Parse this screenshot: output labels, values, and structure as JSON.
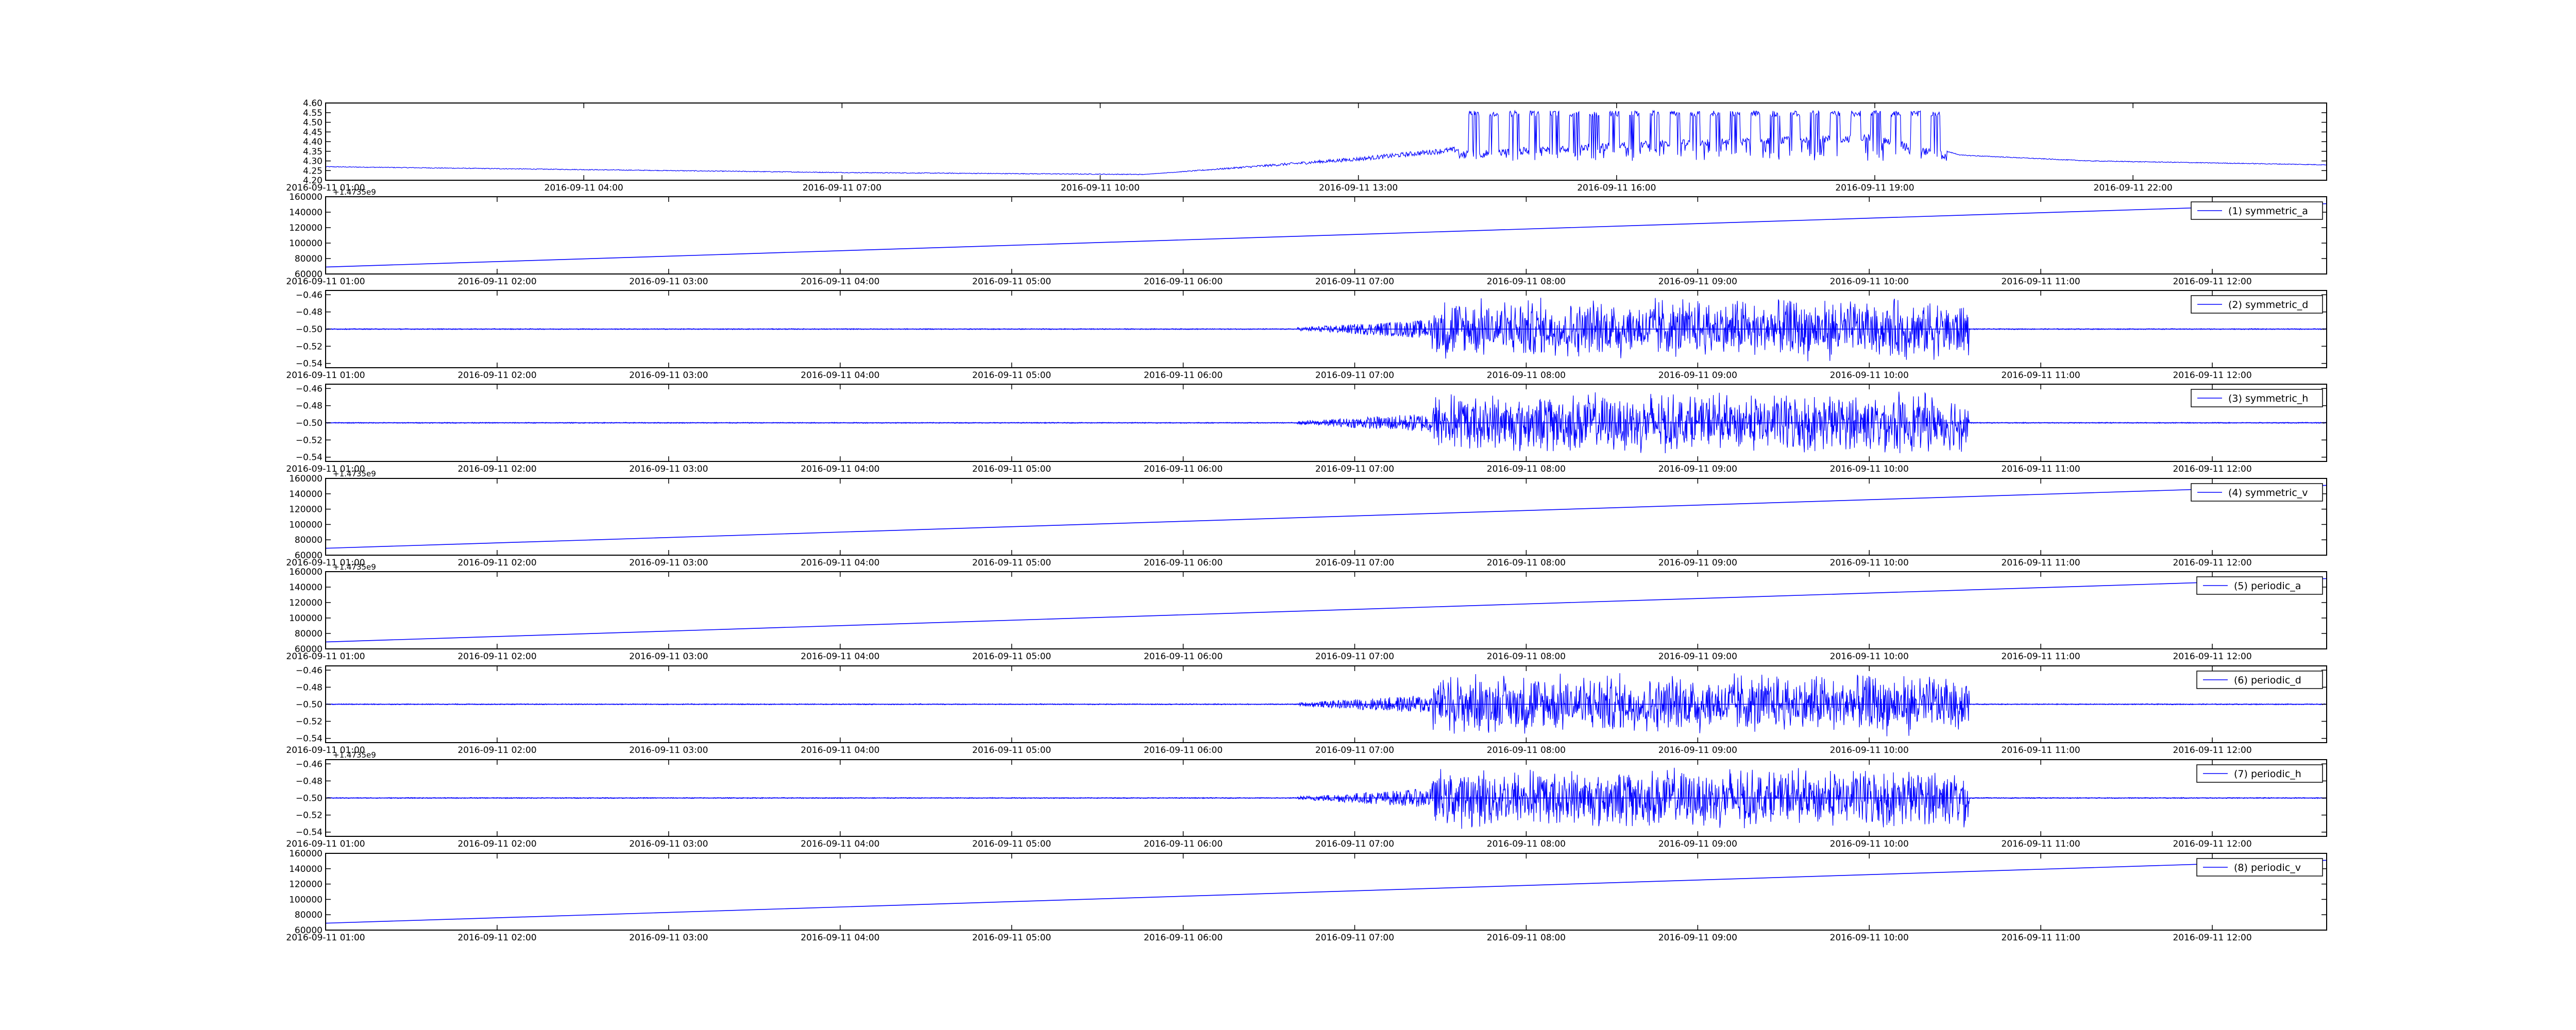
{
  "figure": {
    "background": "#ffffff",
    "line_color": "#0000ff",
    "axis_color": "#000000"
  },
  "chart_data": [
    {
      "type": "line",
      "title": "",
      "xlabel": "",
      "ylabel": "",
      "x_ticks": [
        "2016-09-11 01:00",
        "2016-09-11 04:00",
        "2016-09-11 07:00",
        "2016-09-11 10:00",
        "2016-09-11 13:00",
        "2016-09-11 16:00",
        "2016-09-11 19:00",
        "2016-09-11 22:00"
      ],
      "x_range": [
        "2016-09-11 01:00",
        "2016-09-12 00:15"
      ],
      "y_ticks": [
        "4.20",
        "4.25",
        "4.30",
        "4.35",
        "4.40",
        "4.45",
        "4.50",
        "4.55",
        "4.60"
      ],
      "ylim": [
        4.2,
        4.6
      ],
      "legend": null,
      "signal": {
        "baseline": [
          [
            "2016-09-11 01:00",
            4.27
          ],
          [
            "2016-09-11 07:00",
            4.24
          ],
          [
            "2016-09-11 10:30",
            4.23
          ],
          [
            "2016-09-11 13:00",
            4.31
          ],
          [
            "2016-09-11 14:10",
            4.36
          ],
          [
            "2016-09-11 16:00",
            4.41
          ],
          [
            "2016-09-11 19:00",
            4.45
          ],
          [
            "2016-09-11 20:00",
            4.33
          ],
          [
            "2016-09-11 21:30",
            4.3
          ],
          [
            "2016-09-12 00:15",
            4.28
          ]
        ],
        "active_period": [
          "2016-09-11 14:10",
          "2016-09-11 19:50"
        ],
        "active_max": 4.56,
        "active_min": 4.3
      }
    },
    {
      "type": "line",
      "title": "",
      "xlabel": "",
      "ylabel": "",
      "offset_label": "+1.4735e9",
      "x_ticks": [
        "2016-09-11 01:00",
        "2016-09-11 02:00",
        "2016-09-11 03:00",
        "2016-09-11 04:00",
        "2016-09-11 05:00",
        "2016-09-11 06:00",
        "2016-09-11 07:00",
        "2016-09-11 08:00",
        "2016-09-11 09:00",
        "2016-09-11 10:00",
        "2016-09-11 11:00",
        "2016-09-11 12:00"
      ],
      "x_range": [
        "2016-09-11 01:00",
        "2016-09-11 12:40"
      ],
      "y_ticks": [
        "60000",
        "80000",
        "100000",
        "120000",
        "140000",
        "160000"
      ],
      "ylim": [
        60000,
        160000
      ],
      "legend": "(1) symmetric_a",
      "series": [
        {
          "name": "(1) symmetric_a",
          "x": [
            "2016-09-11 01:00",
            "2016-09-11 12:40"
          ],
          "y": [
            69000,
            151000
          ]
        }
      ]
    },
    {
      "type": "line",
      "title": "",
      "xlabel": "",
      "ylabel": "",
      "x_ticks": [
        "2016-09-11 01:00",
        "2016-09-11 02:00",
        "2016-09-11 03:00",
        "2016-09-11 04:00",
        "2016-09-11 05:00",
        "2016-09-11 06:00",
        "2016-09-11 07:00",
        "2016-09-11 08:00",
        "2016-09-11 09:00",
        "2016-09-11 10:00",
        "2016-09-11 11:00",
        "2016-09-11 12:00"
      ],
      "x_range": [
        "2016-09-11 01:00",
        "2016-09-11 12:40"
      ],
      "y_ticks": [
        "−0.54",
        "−0.52",
        "−0.50",
        "−0.48",
        "−0.46"
      ],
      "ylim": [
        -0.545,
        -0.455
      ],
      "legend": "(2) symmetric_d",
      "signal": {
        "center": -0.5,
        "active_period": [
          "2016-09-11 06:40",
          "2016-09-11 10:35"
        ],
        "burst_amplitude": 0.038
      }
    },
    {
      "type": "line",
      "title": "",
      "xlabel": "",
      "ylabel": "",
      "x_ticks": [
        "2016-09-11 01:00",
        "2016-09-11 02:00",
        "2016-09-11 03:00",
        "2016-09-11 04:00",
        "2016-09-11 05:00",
        "2016-09-11 06:00",
        "2016-09-11 07:00",
        "2016-09-11 08:00",
        "2016-09-11 09:00",
        "2016-09-11 10:00",
        "2016-09-11 11:00",
        "2016-09-11 12:00"
      ],
      "x_range": [
        "2016-09-11 01:00",
        "2016-09-11 12:40"
      ],
      "y_ticks": [
        "−0.54",
        "−0.52",
        "−0.50",
        "−0.48",
        "−0.46"
      ],
      "ylim": [
        -0.545,
        -0.455
      ],
      "legend": "(3) symmetric_h",
      "signal": {
        "center": -0.5,
        "active_period": [
          "2016-09-11 06:40",
          "2016-09-11 10:35"
        ],
        "burst_amplitude": 0.038
      }
    },
    {
      "type": "line",
      "title": "",
      "xlabel": "",
      "ylabel": "",
      "offset_label": "+1.4735e9",
      "x_ticks": [
        "2016-09-11 01:00",
        "2016-09-11 02:00",
        "2016-09-11 03:00",
        "2016-09-11 04:00",
        "2016-09-11 05:00",
        "2016-09-11 06:00",
        "2016-09-11 07:00",
        "2016-09-11 08:00",
        "2016-09-11 09:00",
        "2016-09-11 10:00",
        "2016-09-11 11:00",
        "2016-09-11 12:00"
      ],
      "x_range": [
        "2016-09-11 01:00",
        "2016-09-11 12:40"
      ],
      "y_ticks": [
        "60000",
        "80000",
        "100000",
        "120000",
        "140000",
        "160000"
      ],
      "ylim": [
        60000,
        160000
      ],
      "legend": "(4) symmetric_v",
      "series": [
        {
          "name": "(4) symmetric_v",
          "x": [
            "2016-09-11 01:00",
            "2016-09-11 12:40"
          ],
          "y": [
            69000,
            151000
          ]
        }
      ]
    },
    {
      "type": "line",
      "title": "",
      "xlabel": "",
      "ylabel": "",
      "offset_label": "+1.4735e9",
      "x_ticks": [
        "2016-09-11 01:00",
        "2016-09-11 02:00",
        "2016-09-11 03:00",
        "2016-09-11 04:00",
        "2016-09-11 05:00",
        "2016-09-11 06:00",
        "2016-09-11 07:00",
        "2016-09-11 08:00",
        "2016-09-11 09:00",
        "2016-09-11 10:00",
        "2016-09-11 11:00",
        "2016-09-11 12:00"
      ],
      "x_range": [
        "2016-09-11 01:00",
        "2016-09-11 12:40"
      ],
      "y_ticks": [
        "60000",
        "80000",
        "100000",
        "120000",
        "140000",
        "160000"
      ],
      "ylim": [
        60000,
        160000
      ],
      "legend": "(5) periodic_a",
      "series": [
        {
          "name": "(5) periodic_a",
          "x": [
            "2016-09-11 01:00",
            "2016-09-11 12:40"
          ],
          "y": [
            69000,
            151000
          ]
        }
      ]
    },
    {
      "type": "line",
      "title": "",
      "xlabel": "",
      "ylabel": "",
      "x_ticks": [
        "2016-09-11 01:00",
        "2016-09-11 02:00",
        "2016-09-11 03:00",
        "2016-09-11 04:00",
        "2016-09-11 05:00",
        "2016-09-11 06:00",
        "2016-09-11 07:00",
        "2016-09-11 08:00",
        "2016-09-11 09:00",
        "2016-09-11 10:00",
        "2016-09-11 11:00",
        "2016-09-11 12:00"
      ],
      "x_range": [
        "2016-09-11 01:00",
        "2016-09-11 12:40"
      ],
      "y_ticks": [
        "−0.54",
        "−0.52",
        "−0.50",
        "−0.48",
        "−0.46"
      ],
      "ylim": [
        -0.545,
        -0.455
      ],
      "legend": "(6) periodic_d",
      "signal": {
        "center": -0.5,
        "active_period": [
          "2016-09-11 06:40",
          "2016-09-11 10:35"
        ],
        "burst_amplitude": 0.038
      }
    },
    {
      "type": "line",
      "title": "",
      "xlabel": "",
      "ylabel": "",
      "offset_label": "+1.4735e9",
      "x_ticks": [
        "2016-09-11 01:00",
        "2016-09-11 02:00",
        "2016-09-11 03:00",
        "2016-09-11 04:00",
        "2016-09-11 05:00",
        "2016-09-11 06:00",
        "2016-09-11 07:00",
        "2016-09-11 08:00",
        "2016-09-11 09:00",
        "2016-09-11 10:00",
        "2016-09-11 11:00",
        "2016-09-11 12:00"
      ],
      "x_range": [
        "2016-09-11 01:00",
        "2016-09-11 12:40"
      ],
      "y_ticks": [
        "−0.54",
        "−0.52",
        "−0.50",
        "−0.48",
        "−0.46"
      ],
      "ylim": [
        -0.545,
        -0.455
      ],
      "legend": "(7) periodic_h",
      "signal": {
        "center": -0.5,
        "active_period": [
          "2016-09-11 06:40",
          "2016-09-11 10:35"
        ],
        "burst_amplitude": 0.038
      }
    },
    {
      "type": "line",
      "title": "",
      "xlabel": "",
      "ylabel": "",
      "x_ticks": [
        "2016-09-11 01:00",
        "2016-09-11 02:00",
        "2016-09-11 03:00",
        "2016-09-11 04:00",
        "2016-09-11 05:00",
        "2016-09-11 06:00",
        "2016-09-11 07:00",
        "2016-09-11 08:00",
        "2016-09-11 09:00",
        "2016-09-11 10:00",
        "2016-09-11 11:00",
        "2016-09-11 12:00"
      ],
      "x_range": [
        "2016-09-11 01:00",
        "2016-09-11 12:40"
      ],
      "y_ticks": [
        "60000",
        "80000",
        "100000",
        "120000",
        "140000",
        "160000"
      ],
      "ylim": [
        60000,
        160000
      ],
      "legend": "(8) periodic_v",
      "series": [
        {
          "name": "(8) periodic_v",
          "x": [
            "2016-09-11 01:00",
            "2016-09-11 12:40"
          ],
          "y": [
            69000,
            151000
          ]
        }
      ]
    }
  ]
}
